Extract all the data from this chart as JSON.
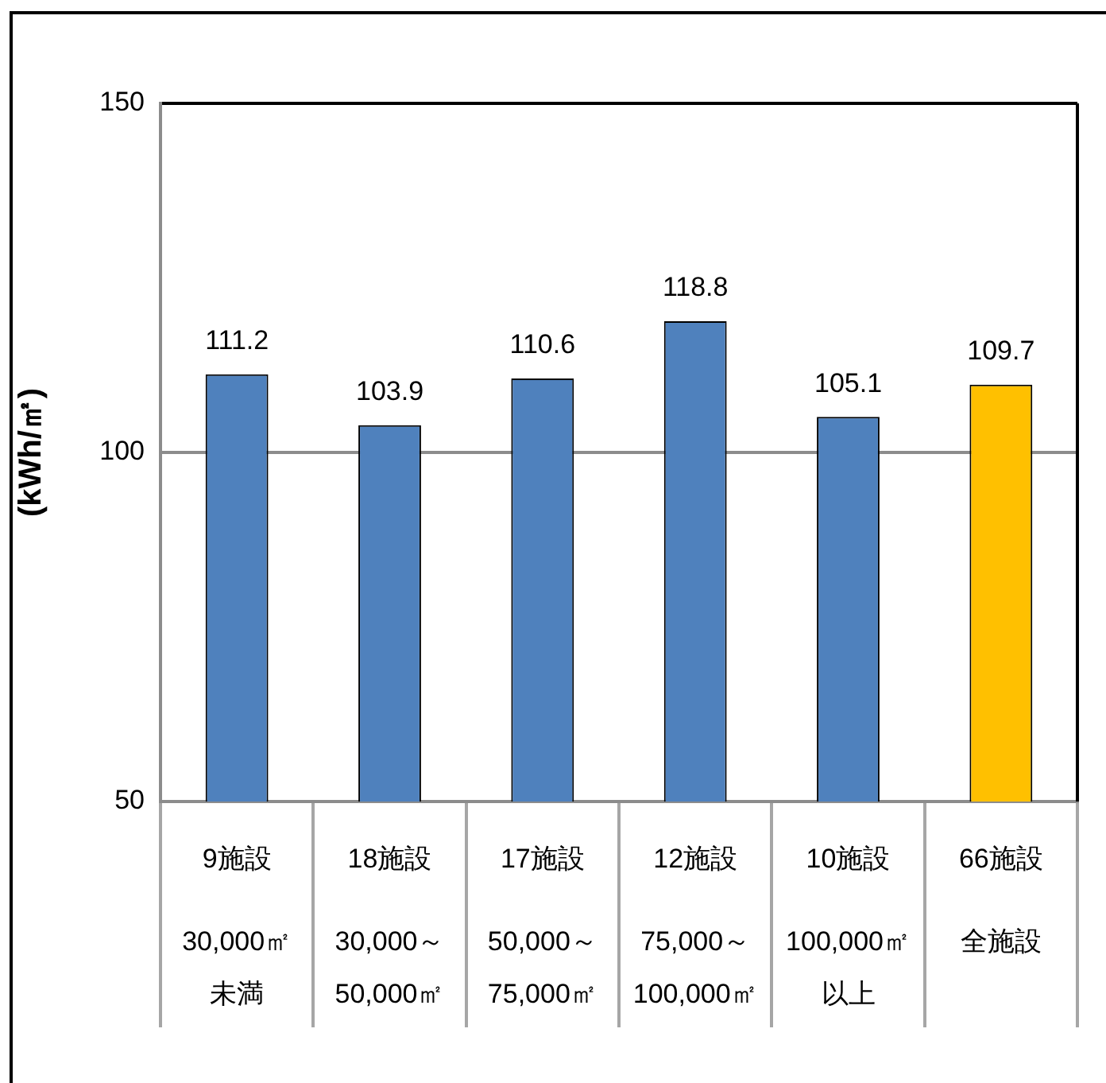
{
  "chart_data": {
    "type": "bar",
    "ylabel": "(kWh/㎡)",
    "categories": [
      "30,000㎡未満",
      "30,000～50,000㎡",
      "50,000～75,000㎡",
      "75,000～100,000㎡",
      "100,000㎡以上",
      "全施設"
    ],
    "annotations": [
      "9施設",
      "18施設",
      "17施設",
      "12施設",
      "10施設",
      "66施設"
    ],
    "values": [
      111.2,
      103.9,
      110.6,
      118.8,
      105.1,
      109.7
    ],
    "colors": [
      "#4f81bd",
      "#4f81bd",
      "#4f81bd",
      "#4f81bd",
      "#4f81bd",
      "#ffc000"
    ],
    "ylim": [
      50,
      150
    ],
    "yticks": [
      50,
      100,
      150
    ],
    "grid": "y",
    "data_labels": true
  }
}
